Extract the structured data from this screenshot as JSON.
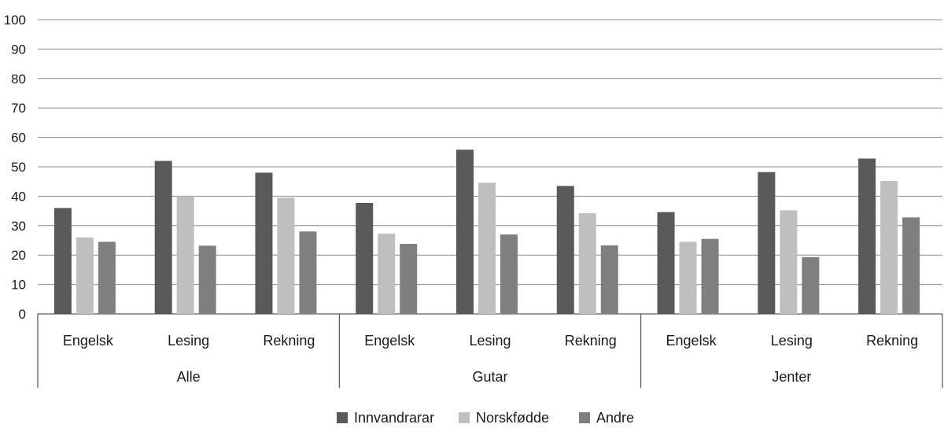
{
  "chart_data": {
    "type": "bar",
    "title": "",
    "xlabel": "",
    "ylabel": "",
    "ylim": [
      0,
      100
    ],
    "yticks": [
      0,
      10,
      20,
      30,
      40,
      50,
      60,
      70,
      80,
      90,
      100
    ],
    "grid": true,
    "legend_position": "bottom",
    "groups": [
      {
        "label": "Alle",
        "categories": [
          "Engelsk",
          "Lesing",
          "Rekning"
        ]
      },
      {
        "label": "Gutar",
        "categories": [
          "Engelsk",
          "Lesing",
          "Rekning"
        ]
      },
      {
        "label": "Jenter",
        "categories": [
          "Engelsk",
          "Lesing",
          "Rekning"
        ]
      }
    ],
    "series": [
      {
        "name": "Innvandrarar",
        "color": "#595959",
        "values": [
          36,
          52,
          48,
          37.7,
          55.8,
          43.5,
          34.6,
          48.2,
          52.8
        ]
      },
      {
        "name": "Norskfødde",
        "color": "#bfbfbf",
        "values": [
          26,
          40,
          39.5,
          27.3,
          44.6,
          34.2,
          24.5,
          35.2,
          45.2
        ]
      },
      {
        "name": "Andre",
        "color": "#7f7f7f",
        "values": [
          24.5,
          23.2,
          28,
          23.8,
          27,
          23.3,
          25.5,
          19.3,
          32.8
        ]
      }
    ]
  }
}
